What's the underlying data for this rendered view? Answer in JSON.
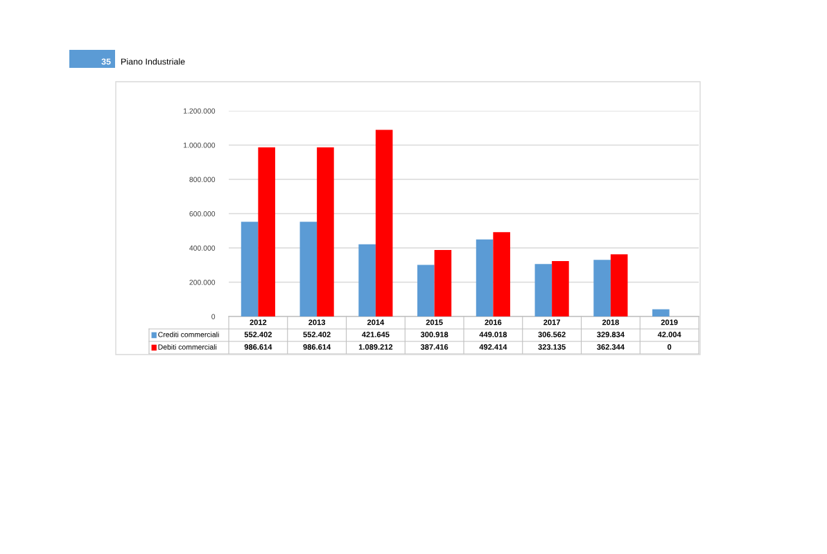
{
  "chart_data": {
    "type": "bar",
    "annotations": [
      "35",
      "Piano Industriale"
    ],
    "categories": [
      "2012",
      "2013",
      "2014",
      "2015",
      "2016",
      "2017",
      "2018",
      "2019"
    ],
    "series": [
      {
        "name": "Crediti commerciali",
        "color": "#5b9bd5",
        "values": [
          552402,
          552402,
          421645,
          300918,
          449018,
          306562,
          329834,
          42004
        ],
        "value_labels": [
          "552.402",
          "552.402",
          "421.645",
          "300.918",
          "449.018",
          "306.562",
          "329.834",
          "42.004"
        ]
      },
      {
        "name": "Debiti commerciali",
        "color": "#ff0000",
        "values": [
          986614,
          986614,
          1089212,
          387416,
          492414,
          323135,
          362344,
          0
        ],
        "value_labels": [
          "986.614",
          "986.614",
          "1.089.212",
          "387.416",
          "492.414",
          "323.135",
          "362.344",
          "0"
        ]
      }
    ],
    "ylim": [
      0,
      1200000
    ],
    "yticks": [
      0,
      {
        "value": 200000,
        "label": "200.000"
      },
      {
        "value": 400000,
        "label": "400.000"
      },
      {
        "value": 600000,
        "label": "600.000"
      },
      {
        "value": 800000,
        "label": "800.000"
      },
      {
        "value": 1000000,
        "label": "1.000.000"
      },
      {
        "value": 1200000,
        "label": "1.200.000"
      }
    ],
    "grid": "y",
    "legend": "bottom"
  }
}
